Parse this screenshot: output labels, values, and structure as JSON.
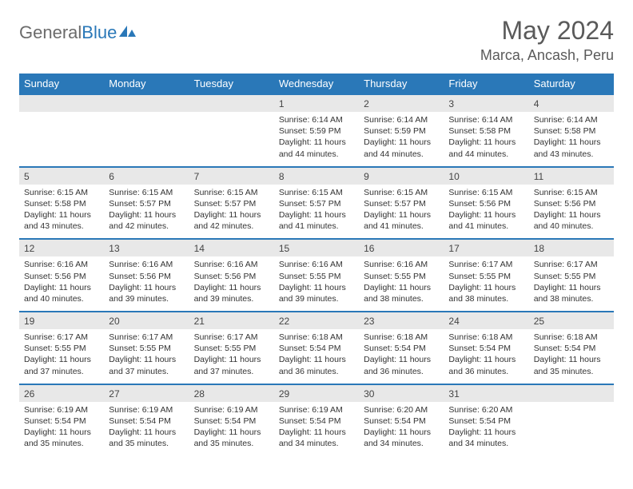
{
  "logo": {
    "text_gray": "General",
    "text_blue": "Blue"
  },
  "title": "May 2024",
  "location": "Marca, Ancash, Peru",
  "colors": {
    "header_bg": "#2a78b8",
    "header_text": "#ffffff",
    "date_row_bg": "#e8e8e8",
    "border": "#2a78b8",
    "body_text": "#333333",
    "title_text": "#5a5a5a"
  },
  "fonts": {
    "title_size": 32,
    "location_size": 18,
    "dayheader_size": 13,
    "date_size": 12,
    "info_size": 10.5
  },
  "day_headers": [
    "Sunday",
    "Monday",
    "Tuesday",
    "Wednesday",
    "Thursday",
    "Friday",
    "Saturday"
  ],
  "labels": {
    "sunrise": "Sunrise:",
    "sunset": "Sunset:",
    "daylight": "Daylight:"
  },
  "weeks": [
    [
      null,
      null,
      null,
      {
        "d": "1",
        "sr": "6:14 AM",
        "ss": "5:59 PM",
        "dl": "11 hours and 44 minutes."
      },
      {
        "d": "2",
        "sr": "6:14 AM",
        "ss": "5:59 PM",
        "dl": "11 hours and 44 minutes."
      },
      {
        "d": "3",
        "sr": "6:14 AM",
        "ss": "5:58 PM",
        "dl": "11 hours and 44 minutes."
      },
      {
        "d": "4",
        "sr": "6:14 AM",
        "ss": "5:58 PM",
        "dl": "11 hours and 43 minutes."
      }
    ],
    [
      {
        "d": "5",
        "sr": "6:15 AM",
        "ss": "5:58 PM",
        "dl": "11 hours and 43 minutes."
      },
      {
        "d": "6",
        "sr": "6:15 AM",
        "ss": "5:57 PM",
        "dl": "11 hours and 42 minutes."
      },
      {
        "d": "7",
        "sr": "6:15 AM",
        "ss": "5:57 PM",
        "dl": "11 hours and 42 minutes."
      },
      {
        "d": "8",
        "sr": "6:15 AM",
        "ss": "5:57 PM",
        "dl": "11 hours and 41 minutes."
      },
      {
        "d": "9",
        "sr": "6:15 AM",
        "ss": "5:57 PM",
        "dl": "11 hours and 41 minutes."
      },
      {
        "d": "10",
        "sr": "6:15 AM",
        "ss": "5:56 PM",
        "dl": "11 hours and 41 minutes."
      },
      {
        "d": "11",
        "sr": "6:15 AM",
        "ss": "5:56 PM",
        "dl": "11 hours and 40 minutes."
      }
    ],
    [
      {
        "d": "12",
        "sr": "6:16 AM",
        "ss": "5:56 PM",
        "dl": "11 hours and 40 minutes."
      },
      {
        "d": "13",
        "sr": "6:16 AM",
        "ss": "5:56 PM",
        "dl": "11 hours and 39 minutes."
      },
      {
        "d": "14",
        "sr": "6:16 AM",
        "ss": "5:56 PM",
        "dl": "11 hours and 39 minutes."
      },
      {
        "d": "15",
        "sr": "6:16 AM",
        "ss": "5:55 PM",
        "dl": "11 hours and 39 minutes."
      },
      {
        "d": "16",
        "sr": "6:16 AM",
        "ss": "5:55 PM",
        "dl": "11 hours and 38 minutes."
      },
      {
        "d": "17",
        "sr": "6:17 AM",
        "ss": "5:55 PM",
        "dl": "11 hours and 38 minutes."
      },
      {
        "d": "18",
        "sr": "6:17 AM",
        "ss": "5:55 PM",
        "dl": "11 hours and 38 minutes."
      }
    ],
    [
      {
        "d": "19",
        "sr": "6:17 AM",
        "ss": "5:55 PM",
        "dl": "11 hours and 37 minutes."
      },
      {
        "d": "20",
        "sr": "6:17 AM",
        "ss": "5:55 PM",
        "dl": "11 hours and 37 minutes."
      },
      {
        "d": "21",
        "sr": "6:17 AM",
        "ss": "5:55 PM",
        "dl": "11 hours and 37 minutes."
      },
      {
        "d": "22",
        "sr": "6:18 AM",
        "ss": "5:54 PM",
        "dl": "11 hours and 36 minutes."
      },
      {
        "d": "23",
        "sr": "6:18 AM",
        "ss": "5:54 PM",
        "dl": "11 hours and 36 minutes."
      },
      {
        "d": "24",
        "sr": "6:18 AM",
        "ss": "5:54 PM",
        "dl": "11 hours and 36 minutes."
      },
      {
        "d": "25",
        "sr": "6:18 AM",
        "ss": "5:54 PM",
        "dl": "11 hours and 35 minutes."
      }
    ],
    [
      {
        "d": "26",
        "sr": "6:19 AM",
        "ss": "5:54 PM",
        "dl": "11 hours and 35 minutes."
      },
      {
        "d": "27",
        "sr": "6:19 AM",
        "ss": "5:54 PM",
        "dl": "11 hours and 35 minutes."
      },
      {
        "d": "28",
        "sr": "6:19 AM",
        "ss": "5:54 PM",
        "dl": "11 hours and 35 minutes."
      },
      {
        "d": "29",
        "sr": "6:19 AM",
        "ss": "5:54 PM",
        "dl": "11 hours and 34 minutes."
      },
      {
        "d": "30",
        "sr": "6:20 AM",
        "ss": "5:54 PM",
        "dl": "11 hours and 34 minutes."
      },
      {
        "d": "31",
        "sr": "6:20 AM",
        "ss": "5:54 PM",
        "dl": "11 hours and 34 minutes."
      },
      null
    ]
  ]
}
